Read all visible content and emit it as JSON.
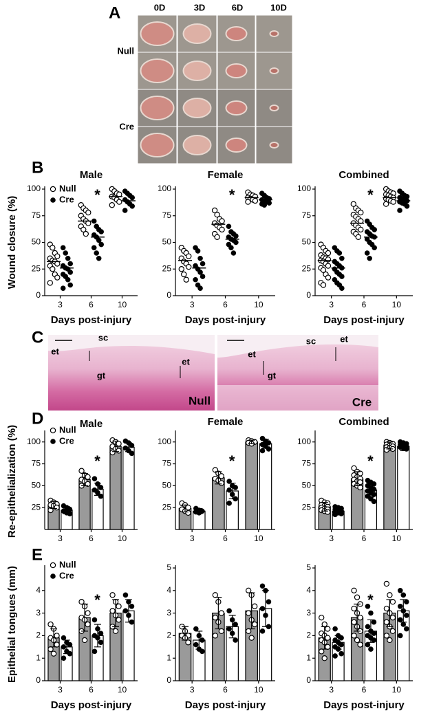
{
  "panel_labels": [
    "A",
    "B",
    "C",
    "D",
    "E"
  ],
  "panel_a": {
    "columns": [
      "0D",
      "3D",
      "6D",
      "10D"
    ],
    "rows": [
      "Null",
      "Cre"
    ]
  },
  "panel_c": {
    "labels": [
      "sc",
      "et",
      "gt",
      "et",
      "Null",
      "sc",
      "et",
      "et",
      "gt",
      "Cre"
    ]
  },
  "chart_data": [
    {
      "type": "dot",
      "title": "Male",
      "ylabel": "Wound closure (%)",
      "xlabel": "Days post-injury",
      "legend": "upper left",
      "categories": [
        "3",
        "6",
        "10"
      ],
      "ylim": [
        0,
        100
      ],
      "yticks": [
        0,
        25,
        50,
        75,
        100
      ],
      "annotations": [
        {
          "text": "*",
          "x": "6"
        }
      ],
      "series": [
        {
          "name": "Null",
          "marker": "open",
          "means": [
            32,
            70,
            93
          ],
          "values": [
            [
              48,
              45,
              40,
              37,
              35,
              33,
              32,
              30,
              28,
              25,
              20,
              17,
              12
            ],
            [
              85,
              82,
              80,
              78,
              75,
              72,
              70,
              68,
              65,
              62,
              58
            ],
            [
              100,
              98,
              96,
              95,
              93,
              92,
              90,
              88,
              85
            ]
          ]
        },
        {
          "name": "Cre",
          "marker": "filled",
          "means": [
            26,
            55,
            89
          ],
          "values": [
            [
              45,
              40,
              35,
              30,
              28,
              26,
              25,
              22,
              20,
              18,
              15,
              10,
              7
            ],
            [
              70,
              65,
              62,
              60,
              57,
              55,
              52,
              48,
              45,
              40,
              35
            ],
            [
              98,
              96,
              94,
              92,
              90,
              88,
              86,
              84,
              80
            ]
          ]
        }
      ]
    },
    {
      "type": "dot",
      "title": "Female",
      "xlabel": "Days post-injury",
      "categories": [
        "3",
        "6",
        "10"
      ],
      "ylim": [
        0,
        100
      ],
      "yticks": [
        0,
        25,
        50,
        75,
        100
      ],
      "annotations": [
        {
          "text": "*",
          "x": "6"
        }
      ],
      "series": [
        {
          "marker": "open",
          "means": [
            33,
            67,
            92
          ],
          "values": [
            [
              45,
              42,
              40,
              37,
              35,
              32,
              30,
              27,
              25,
              20,
              15
            ],
            [
              80,
              76,
              72,
              70,
              68,
              66,
              64,
              62,
              58,
              55
            ],
            [
              97,
              95,
              94,
              93,
              92,
              91,
              90,
              89,
              88
            ]
          ]
        },
        {
          "marker": "filled",
          "means": [
            26,
            53,
            90
          ],
          "values": [
            [
              45,
              42,
              35,
              30,
              28,
              25,
              22,
              18,
              15,
              10,
              7
            ],
            [
              65,
              60,
              58,
              56,
              55,
              53,
              52,
              50,
              48,
              45,
              40
            ],
            [
              96,
              94,
              92,
              91,
              90,
              89,
              88,
              87,
              86,
              85
            ]
          ]
        }
      ]
    },
    {
      "type": "dot",
      "title": "Combined",
      "xlabel": "Days post-injury",
      "categories": [
        "3",
        "6",
        "10"
      ],
      "ylim": [
        0,
        100
      ],
      "yticks": [
        0,
        25,
        50,
        75,
        100
      ],
      "annotations": [
        {
          "text": "*",
          "x": "6"
        }
      ],
      "series": [
        {
          "marker": "open",
          "means": [
            33,
            68,
            92
          ],
          "values": [
            [
              48,
              45,
              42,
              40,
              38,
              36,
              35,
              34,
              33,
              32,
              30,
              28,
              26,
              24,
              20,
              17,
              12,
              10
            ],
            [
              86,
              82,
              80,
              78,
              76,
              74,
              72,
              70,
              68,
              66,
              64,
              62,
              60,
              58,
              55
            ],
            [
              100,
              98,
              97,
              96,
              95,
              94,
              93,
              92,
              91,
              90,
              89,
              88,
              86
            ]
          ]
        },
        {
          "marker": "filled",
          "means": [
            26,
            55,
            89
          ],
          "values": [
            [
              45,
              42,
              40,
              35,
              32,
              30,
              28,
              26,
              25,
              22,
              20,
              18,
              15,
              12,
              10,
              7
            ],
            [
              70,
              67,
              64,
              62,
              60,
              58,
              56,
              55,
              53,
              50,
              48,
              45,
              40,
              35
            ],
            [
              98,
              96,
              94,
              93,
              92,
              91,
              90,
              89,
              88,
              87,
              86,
              84,
              80
            ]
          ]
        }
      ]
    },
    {
      "type": "bar",
      "title": "Male",
      "ylabel": "Re-epithelialization (%)",
      "legend": "upper left",
      "categories": [
        "3",
        "6",
        "10"
      ],
      "ylim": [
        0,
        110
      ],
      "yticks": [
        25,
        50,
        75,
        100
      ],
      "annotations": [
        {
          "text": "*",
          "x": "6"
        }
      ],
      "series": [
        {
          "name": "Null",
          "color": "#9a9a9a",
          "marker": "open",
          "values": [
            28,
            57,
            95
          ],
          "errors": [
            4,
            7,
            6
          ],
          "points": [
            [
              33,
              31,
              29,
              28,
              27,
              25,
              22
            ],
            [
              67,
              62,
              60,
              57,
              55,
              52,
              50
            ],
            [
              102,
              100,
              98,
              95,
              92,
              90,
              88
            ]
          ]
        },
        {
          "name": "Cre",
          "color": "#ffffff",
          "marker": "filled",
          "values": [
            22,
            46,
            94
          ],
          "errors": [
            4,
            7,
            5
          ],
          "points": [
            [
              27,
              25,
              23,
              21,
              19,
              18
            ],
            [
              58,
              52,
              48,
              45,
              42,
              38
            ],
            [
              101,
              99,
              96,
              93,
              90,
              87
            ]
          ]
        }
      ]
    },
    {
      "type": "bar",
      "title": "Female",
      "categories": [
        "3",
        "6",
        "10"
      ],
      "ylim": [
        0,
        110
      ],
      "yticks": [
        25,
        50,
        75,
        100
      ],
      "annotations": [
        {
          "text": "*",
          "x": "6"
        }
      ],
      "series": [
        {
          "color": "#9a9a9a",
          "marker": "open",
          "values": [
            24,
            59,
            100
          ],
          "errors": [
            4,
            7,
            2
          ],
          "points": [
            [
              30,
              28,
              25,
              23,
              21,
              19
            ],
            [
              68,
              64,
              61,
              58,
              56,
              53
            ],
            [
              102,
              101,
              100,
              99,
              98
            ]
          ]
        },
        {
          "color": "#ffffff",
          "marker": "filled",
          "values": [
            21,
            44,
            98
          ],
          "errors": [
            3,
            9,
            5
          ],
          "points": [
            [
              24,
              22,
              21,
              20,
              19
            ],
            [
              55,
              50,
              48,
              45,
              40,
              35,
              30
            ],
            [
              104,
              101,
              99,
              97,
              95,
              92,
              90
            ]
          ]
        }
      ]
    },
    {
      "type": "bar",
      "title": "Combined",
      "categories": [
        "3",
        "6",
        "10"
      ],
      "ylim": [
        0,
        110
      ],
      "yticks": [
        25,
        50,
        75,
        100
      ],
      "annotations": [
        {
          "text": "*",
          "x": "6"
        }
      ],
      "series": [
        {
          "color": "#9a9a9a",
          "marker": "open",
          "values": [
            26,
            58,
            96
          ],
          "errors": [
            5,
            8,
            4
          ],
          "points": [
            [
              33,
              31,
              30,
              28,
              27,
              26,
              25,
              24,
              23,
              22,
              21,
              20
            ],
            [
              70,
              66,
              64,
              62,
              60,
              58,
              57,
              55,
              54,
              52,
              50,
              48
            ],
            [
              100,
              99,
              98,
              97,
              96,
              95,
              94,
              93,
              92,
              91
            ]
          ]
        },
        {
          "color": "#ffffff",
          "marker": "filled",
          "values": [
            21,
            45,
            95
          ],
          "errors": [
            3,
            8,
            5
          ],
          "points": [
            [
              26,
              25,
              24,
              23,
              22,
              21,
              20,
              19,
              18,
              17
            ],
            [
              56,
              54,
              52,
              50,
              48,
              46,
              44,
              42,
              40,
              38,
              35,
              32
            ],
            [
              100,
              99,
              98,
              97,
              96,
              95,
              94,
              93,
              92
            ]
          ]
        }
      ]
    },
    {
      "type": "bar",
      "ylabel": "Epithelial tongues (mm)",
      "xlabel": "Days post-injury",
      "legend": "upper left",
      "categories": [
        "3",
        "6",
        "10"
      ],
      "ylim": [
        0,
        5
      ],
      "yticks": [
        0,
        1,
        2,
        3,
        4
      ],
      "annotations": [
        {
          "text": "*",
          "x": "6"
        }
      ],
      "series": [
        {
          "name": "Null",
          "color": "#9a9a9a",
          "marker": "open",
          "values": [
            1.9,
            2.8,
            3.0
          ],
          "errors": [
            0.4,
            0.6,
            0.6
          ],
          "points": [
            [
              2.5,
              2.3,
              2.0,
              1.9,
              1.8,
              1.6,
              1.4,
              1.2
            ],
            [
              3.5,
              3.3,
              3.0,
              2.8,
              2.7,
              2.5,
              2.2,
              1.8
            ],
            [
              3.8,
              3.5,
              3.3,
              3.1,
              2.9,
              2.7,
              2.4,
              2.2
            ]
          ]
        },
        {
          "name": "Cre",
          "color": "#ffffff",
          "marker": "filled",
          "values": [
            1.5,
            2.0,
            3.1
          ],
          "errors": [
            0.3,
            0.5,
            0.5
          ],
          "points": [
            [
              1.9,
              1.7,
              1.6,
              1.5,
              1.3,
              1.2,
              1.0
            ],
            [
              2.7,
              2.3,
              2.1,
              2.0,
              1.9,
              1.7,
              1.3
            ],
            [
              3.8,
              3.5,
              3.3,
              3.1,
              2.9,
              2.6
            ]
          ]
        }
      ]
    },
    {
      "type": "bar",
      "xlabel": "Days post-injury",
      "categories": [
        "3",
        "6",
        "10"
      ],
      "ylim": [
        0,
        5
      ],
      "yticks": [
        0,
        1,
        2,
        3,
        4,
        5
      ],
      "series": [
        {
          "color": "#9a9a9a",
          "marker": "open",
          "values": [
            2.1,
            3.0,
            3.1
          ],
          "errors": [
            0.3,
            0.7,
            0.8
          ],
          "points": [
            [
              2.4,
              2.2,
              2.0,
              2.0,
              1.9,
              1.7
            ],
            [
              3.8,
              3.5,
              3.0,
              2.8,
              2.6,
              2.2,
              2.0
            ],
            [
              4.0,
              3.8,
              3.3,
              3.0,
              2.7,
              2.5,
              2.2,
              1.9
            ]
          ]
        },
        {
          "color": "#ffffff",
          "marker": "filled",
          "values": [
            1.8,
            2.4,
            3.2
          ],
          "errors": [
            0.4,
            0.5,
            0.8
          ],
          "points": [
            [
              2.3,
              2.0,
              1.8,
              1.6,
              1.4,
              1.3
            ],
            [
              3.1,
              2.7,
              2.5,
              2.3,
              2.1,
              1.8
            ],
            [
              4.2,
              4.0,
              3.5,
              3.2,
              2.9,
              2.4,
              2.2
            ]
          ]
        }
      ]
    },
    {
      "type": "bar",
      "xlabel": "Days post-injury",
      "categories": [
        "3",
        "6",
        "10"
      ],
      "ylim": [
        0,
        5
      ],
      "yticks": [
        0,
        1,
        2,
        3,
        4,
        5
      ],
      "annotations": [
        {
          "text": "*",
          "x": "6"
        }
      ],
      "series": [
        {
          "color": "#9a9a9a",
          "marker": "open",
          "values": [
            1.9,
            2.8,
            3.0
          ],
          "errors": [
            0.5,
            0.6,
            0.6
          ],
          "points": [
            [
              2.8,
              2.5,
              2.3,
              2.1,
              2.0,
              1.9,
              1.8,
              1.7,
              1.5,
              1.3,
              1.0
            ],
            [
              4.0,
              3.7,
              3.4,
              3.2,
              3.0,
              2.8,
              2.6,
              2.4,
              2.2,
              2.0,
              1.8,
              1.6
            ],
            [
              4.3,
              3.8,
              3.5,
              3.2,
              3.0,
              2.8,
              2.6,
              2.4,
              2.2,
              2.0,
              1.8
            ]
          ]
        },
        {
          "color": "#ffffff",
          "marker": "filled",
          "values": [
            1.7,
            2.2,
            3.1
          ],
          "errors": [
            0.3,
            0.5,
            0.5
          ],
          "points": [
            [
              2.3,
              2.0,
              1.9,
              1.8,
              1.7,
              1.6,
              1.5,
              1.4,
              1.2,
              1.1
            ],
            [
              3.3,
              3.0,
              2.6,
              2.4,
              2.2,
              2.1,
              2.0,
              1.9,
              1.8,
              1.6,
              1.4
            ],
            [
              4.0,
              3.8,
              3.5,
              3.3,
              3.1,
              2.9,
              2.7,
              2.5,
              2.3,
              2.0
            ]
          ]
        }
      ]
    }
  ]
}
